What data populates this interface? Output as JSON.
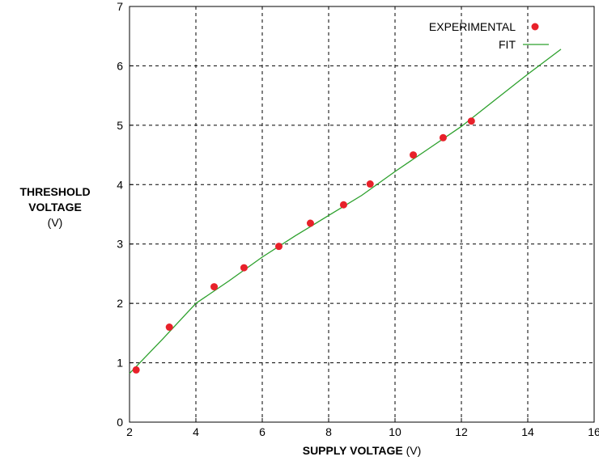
{
  "chart_data": {
    "type": "scatter",
    "xlabel_bold": "SUPPLY VOLTAGE",
    "xlabel_unit": "(V)",
    "ylabel_line1": "THRESHOLD",
    "ylabel_line2": "VOLTAGE",
    "ylabel_unit": "(V)",
    "xlim": [
      2,
      16
    ],
    "ylim": [
      0,
      7
    ],
    "x_ticks": [
      2,
      4,
      6,
      8,
      10,
      12,
      14,
      16
    ],
    "y_ticks": [
      0,
      1,
      2,
      3,
      4,
      5,
      6,
      7
    ],
    "grid": true,
    "legend_position": "top-right",
    "series": [
      {
        "name": "EXPERIMENTAL",
        "kind": "points",
        "color": "#e8212a",
        "x": [
          2.2,
          3.2,
          4.55,
          5.45,
          6.5,
          7.45,
          8.45,
          9.25,
          10.55,
          11.45,
          12.3
        ],
        "y": [
          0.88,
          1.6,
          2.28,
          2.6,
          2.96,
          3.35,
          3.66,
          4.01,
          4.5,
          4.79,
          5.07
        ]
      },
      {
        "name": "FIT",
        "kind": "line",
        "color": "#2ca02c",
        "x": [
          2.0,
          3.0,
          4.0,
          5.0,
          6.0,
          7.0,
          8.0,
          9.0,
          10.0,
          11.0,
          12.0,
          13.0,
          14.0,
          15.0
        ],
        "y": [
          0.82,
          1.4,
          2.0,
          2.38,
          2.78,
          3.14,
          3.48,
          3.82,
          4.22,
          4.6,
          4.98,
          5.42,
          5.86,
          6.28
        ]
      }
    ]
  }
}
